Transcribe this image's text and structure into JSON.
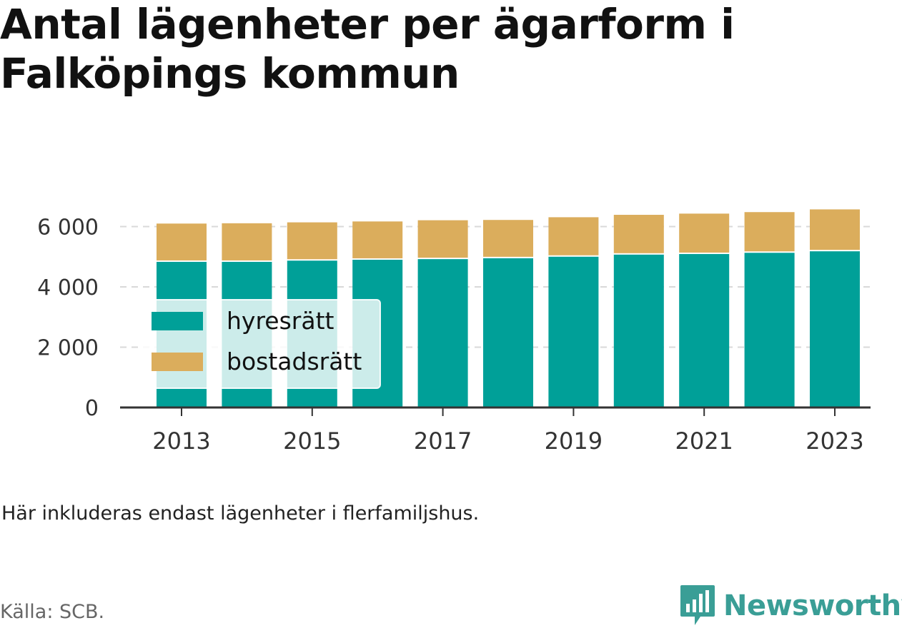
{
  "title": {
    "line1": "Antal lägenheter per ägarform i",
    "line2": "Falköpings kommun"
  },
  "note": "Här inkluderas endast lägenheter i flerfamiljshus.",
  "source": "Källa: SCB.",
  "brand": {
    "name": "Newsworthy",
    "icon": "bar-chart-speech-bubble-icon",
    "color": "#3a9e96"
  },
  "chart_data": {
    "type": "bar",
    "stacked": true,
    "x": [
      2013,
      2014,
      2015,
      2016,
      2017,
      2018,
      2019,
      2020,
      2021,
      2022,
      2023
    ],
    "x_tick_labels": [
      "2013",
      "2015",
      "2017",
      "2019",
      "2021",
      "2023"
    ],
    "series": [
      {
        "name": "hyresrätt",
        "color": "#00a098",
        "values": [
          4830,
          4830,
          4870,
          4900,
          4920,
          4950,
          5000,
          5070,
          5090,
          5130,
          5180
        ]
      },
      {
        "name": "bostadsrätt",
        "color": "#dbad5c",
        "values": [
          1270,
          1280,
          1270,
          1270,
          1290,
          1270,
          1310,
          1320,
          1340,
          1350,
          1390
        ]
      }
    ],
    "y_ticks": [
      0,
      2000,
      4000,
      6000
    ],
    "y_tick_labels": [
      "0",
      "2 000",
      "4 000",
      "6 000"
    ],
    "ylim": [
      0,
      6600
    ],
    "grid": true,
    "legend_position": "left-middle"
  }
}
